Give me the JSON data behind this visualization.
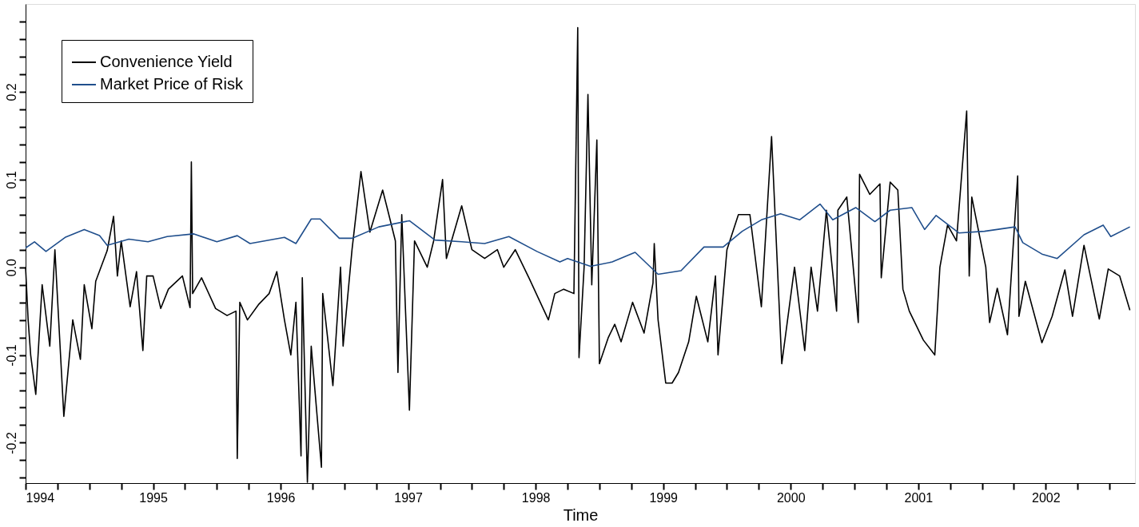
{
  "chart_data": {
    "type": "line",
    "xlabel": "Time",
    "legend": "top left",
    "grid": false,
    "xlim": [
      1994,
      2002.7
    ],
    "ylim": [
      -0.246,
      0.3
    ],
    "xticks": [
      1994,
      {
        "value": 1994.25,
        "label": null
      },
      {
        "value": 1994.5,
        "label": null
      },
      {
        "value": 1994.75,
        "label": null
      },
      1995,
      {
        "value": 1995.25,
        "label": null
      },
      {
        "value": 1995.5,
        "label": null
      },
      {
        "value": 1995.75,
        "label": null
      },
      1996,
      {
        "value": 1996.25,
        "label": null
      },
      {
        "value": 1996.5,
        "label": null
      },
      {
        "value": 1996.75,
        "label": null
      },
      1997,
      {
        "value": 1997.25,
        "label": null
      },
      {
        "value": 1997.5,
        "label": null
      },
      {
        "value": 1997.75,
        "label": null
      },
      1998,
      {
        "value": 1998.25,
        "label": null
      },
      {
        "value": 1998.5,
        "label": null
      },
      {
        "value": 1998.75,
        "label": null
      },
      1999,
      {
        "value": 1999.25,
        "label": null
      },
      {
        "value": 1999.5,
        "label": null
      },
      {
        "value": 1999.75,
        "label": null
      },
      2000,
      {
        "value": 2000.25,
        "label": null
      },
      {
        "value": 2000.5,
        "label": null
      },
      {
        "value": 2000.75,
        "label": null
      },
      2001,
      {
        "value": 2001.25,
        "label": null
      },
      {
        "value": 2001.5,
        "label": null
      },
      {
        "value": 2001.75,
        "label": null
      },
      2002,
      {
        "value": 2002.25,
        "label": null
      },
      {
        "value": 2002.5,
        "label": null
      }
    ],
    "yticks": [
      {
        "value": -0.24,
        "label": null
      },
      {
        "value": -0.22,
        "label": null
      },
      {
        "value": -0.2,
        "label": "-0.2"
      },
      {
        "value": -0.18,
        "label": null
      },
      {
        "value": -0.16,
        "label": null
      },
      {
        "value": -0.14,
        "label": null
      },
      {
        "value": -0.12,
        "label": null
      },
      {
        "value": -0.1,
        "label": "-0.1"
      },
      {
        "value": -0.08,
        "label": null
      },
      {
        "value": -0.06,
        "label": null
      },
      {
        "value": -0.04,
        "label": null
      },
      {
        "value": -0.02,
        "label": null
      },
      {
        "value": 0,
        "label": "0.0"
      },
      {
        "value": 0.02,
        "label": null
      },
      {
        "value": 0.04,
        "label": null
      },
      {
        "value": 0.06,
        "label": null
      },
      {
        "value": 0.08,
        "label": null
      },
      {
        "value": 0.1,
        "label": "0.1"
      },
      {
        "value": 0.12,
        "label": null
      },
      {
        "value": 0.14,
        "label": null
      },
      {
        "value": 0.16,
        "label": null
      },
      {
        "value": 0.18,
        "label": null
      },
      {
        "value": 0.2,
        "label": "0.2"
      },
      {
        "value": 0.22,
        "label": null
      },
      {
        "value": 0.24,
        "label": null
      },
      {
        "value": 0.26,
        "label": null
      },
      {
        "value": 0.28,
        "label": null
      }
    ],
    "series": [
      {
        "name": "Convenience Yield",
        "color": "#000000",
        "x": [
          1994.0,
          1994.02,
          1994.04,
          1994.08,
          1994.13,
          1994.19,
          1994.23,
          1994.3,
          1994.37,
          1994.43,
          1994.46,
          1994.52,
          1994.55,
          1994.64,
          1994.69,
          1994.72,
          1994.75,
          1994.82,
          1994.87,
          1994.92,
          1994.95,
          1995.0,
          1995.06,
          1995.12,
          1995.23,
          1995.29,
          1995.3,
          1995.31,
          1995.38,
          1995.49,
          1995.58,
          1995.65,
          1995.66,
          1995.68,
          1995.74,
          1995.83,
          1995.91,
          1995.97,
          1996.03,
          1996.08,
          1996.12,
          1996.16,
          1996.17,
          1996.21,
          1996.24,
          1996.32,
          1996.33,
          1996.41,
          1996.47,
          1996.49,
          1996.56,
          1996.63,
          1996.7,
          1996.8,
          1996.84,
          1996.9,
          1996.92,
          1996.95,
          1997.01,
          1997.05,
          1997.15,
          1997.2,
          1997.27,
          1997.3,
          1997.42,
          1997.5,
          1997.6,
          1997.7,
          1997.75,
          1997.84,
          1997.95,
          1998.1,
          1998.15,
          1998.22,
          1998.3,
          1998.33,
          1998.34,
          1998.38,
          1998.41,
          1998.44,
          1998.48,
          1998.5,
          1998.57,
          1998.62,
          1998.67,
          1998.76,
          1998.85,
          1998.92,
          1998.93,
          1998.96,
          1999.02,
          1999.07,
          1999.12,
          1999.2,
          1999.26,
          1999.35,
          1999.41,
          1999.43,
          1999.5,
          1999.59,
          1999.68,
          1999.77,
          1999.85,
          1999.93,
          2000.03,
          2000.11,
          2000.16,
          2000.21,
          2000.28,
          2000.36,
          2000.37,
          2000.44,
          2000.53,
          2000.54,
          2000.62,
          2000.7,
          2000.71,
          2000.78,
          2000.84,
          2000.88,
          2000.93,
          2001.04,
          2001.13,
          2001.17,
          2001.23,
          2001.3,
          2001.38,
          2001.4,
          2001.42,
          2001.53,
          2001.56,
          2001.62,
          2001.7,
          2001.78,
          2001.79,
          2001.84,
          2001.97,
          2002.05,
          2002.15,
          2002.21,
          2002.3,
          2002.42,
          2002.49,
          2002.58,
          2002.66
        ],
        "values": [
          0.0,
          -0.06,
          -0.1,
          -0.145,
          -0.02,
          -0.09,
          0.02,
          -0.17,
          -0.06,
          -0.105,
          -0.02,
          -0.07,
          -0.016,
          0.019,
          0.058,
          -0.01,
          0.03,
          -0.045,
          -0.005,
          -0.095,
          -0.01,
          -0.01,
          -0.047,
          -0.025,
          -0.01,
          -0.046,
          0.12,
          -0.03,
          -0.012,
          -0.047,
          -0.055,
          -0.05,
          -0.218,
          -0.04,
          -0.06,
          -0.042,
          -0.03,
          -0.005,
          -0.06,
          -0.1,
          -0.04,
          -0.215,
          -0.012,
          -0.245,
          -0.09,
          -0.228,
          -0.03,
          -0.135,
          0.0,
          -0.09,
          0.02,
          0.109,
          0.04,
          0.088,
          0.065,
          0.03,
          -0.12,
          0.06,
          -0.163,
          0.03,
          0.0,
          0.03,
          0.1,
          0.01,
          0.07,
          0.02,
          0.01,
          0.02,
          0.0,
          0.02,
          -0.013,
          -0.06,
          -0.03,
          -0.025,
          -0.03,
          0.273,
          -0.103,
          0.0,
          0.197,
          -0.02,
          0.145,
          -0.11,
          -0.08,
          -0.065,
          -0.085,
          -0.04,
          -0.075,
          -0.018,
          0.027,
          -0.06,
          -0.132,
          -0.132,
          -0.12,
          -0.085,
          -0.033,
          -0.085,
          -0.01,
          -0.1,
          0.02,
          0.06,
          0.06,
          -0.045,
          0.149,
          -0.11,
          0.0,
          -0.095,
          0.0,
          -0.05,
          0.065,
          -0.05,
          0.065,
          0.08,
          -0.063,
          0.106,
          0.083,
          0.095,
          -0.012,
          0.097,
          0.088,
          -0.025,
          -0.05,
          -0.083,
          -0.1,
          0.0,
          0.048,
          0.03,
          0.178,
          -0.01,
          0.08,
          0.0,
          -0.063,
          -0.024,
          -0.077,
          0.104,
          -0.056,
          -0.016,
          -0.086,
          -0.056,
          -0.003,
          -0.056,
          0.025,
          -0.059,
          -0.002,
          -0.01,
          -0.049
        ]
      },
      {
        "name": "Market Price of Risk",
        "color": "#1f4e8c",
        "x": [
          1994.0,
          1994.07,
          1994.16,
          1994.31,
          1994.46,
          1994.58,
          1994.64,
          1994.81,
          1994.96,
          1995.11,
          1995.32,
          1995.5,
          1995.66,
          1995.76,
          1996.03,
          1996.12,
          1996.24,
          1996.31,
          1996.46,
          1996.56,
          1996.77,
          1997.01,
          1997.21,
          1997.42,
          1997.6,
          1997.79,
          1998.01,
          1998.19,
          1998.25,
          1998.43,
          1998.6,
          1998.78,
          1998.96,
          1999.14,
          1999.32,
          1999.47,
          1999.62,
          1999.77,
          1999.92,
          2000.07,
          2000.23,
          2000.33,
          2000.51,
          2000.66,
          2000.78,
          2000.95,
          2001.05,
          2001.14,
          2001.32,
          2001.52,
          2001.76,
          2001.82,
          2001.97,
          2002.09,
          2002.3,
          2002.45,
          2002.51,
          2002.66
        ],
        "values": [
          0.022,
          0.029,
          0.018,
          0.034,
          0.043,
          0.036,
          0.025,
          0.032,
          0.029,
          0.035,
          0.038,
          0.029,
          0.036,
          0.027,
          0.034,
          0.027,
          0.055,
          0.055,
          0.033,
          0.033,
          0.046,
          0.053,
          0.031,
          0.029,
          0.027,
          0.035,
          0.018,
          0.006,
          0.01,
          0.001,
          0.006,
          0.017,
          -0.008,
          -0.004,
          0.023,
          0.023,
          0.041,
          0.054,
          0.061,
          0.054,
          0.072,
          0.054,
          0.068,
          0.052,
          0.065,
          0.068,
          0.043,
          0.059,
          0.039,
          0.041,
          0.046,
          0.028,
          0.015,
          0.01,
          0.037,
          0.048,
          0.035,
          0.046
        ]
      }
    ]
  }
}
